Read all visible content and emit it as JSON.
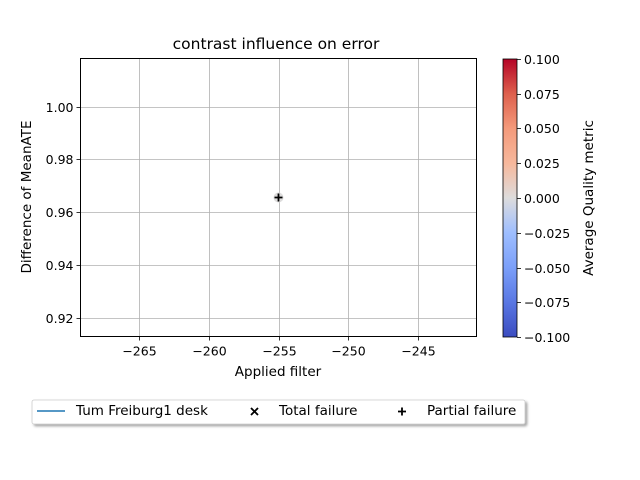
{
  "chart_data": {
    "type": "scatter",
    "title": "contrast influence on error",
    "xlabel": "Applied filter",
    "ylabel": "Difference of MeanATE",
    "xlim": [
      -269.2,
      -240.8
    ],
    "ylim": [
      0.9128,
      1.0182
    ],
    "xticks": [
      -265,
      -260,
      -255,
      -250,
      -245
    ],
    "xtick_labels": [
      "−265",
      "−260",
      "−255",
      "−250",
      "−245"
    ],
    "yticks": [
      0.92,
      0.94,
      0.96,
      0.98,
      1.0
    ],
    "ytick_labels": [
      "0.92",
      "0.94",
      "0.96",
      "0.98",
      "1.00"
    ],
    "grid": true,
    "points": [
      {
        "x": -255,
        "y": 0.9655,
        "quality": 0.0,
        "marker": "circle"
      },
      {
        "x": -255,
        "y": 0.9655,
        "marker": "partial-failure"
      }
    ],
    "colorbar": {
      "label": "Average Quality metric",
      "colormap": "coolwarm",
      "range": [
        -0.1,
        0.1
      ],
      "ticks": [
        -0.1,
        -0.075,
        -0.05,
        -0.025,
        0.0,
        0.025,
        0.05,
        0.075,
        0.1
      ],
      "tick_labels": [
        "−0.100",
        "−0.075",
        "−0.050",
        "−0.025",
        "0.000",
        "0.025",
        "0.050",
        "0.075",
        "0.100"
      ]
    },
    "legend": {
      "placement": "below",
      "entries": [
        {
          "label": "Tum Freiburg1 desk",
          "symbol": "line",
          "color": "#1f77b4"
        },
        {
          "label": "Total failure",
          "symbol": "x",
          "color": "#000000"
        },
        {
          "label": "Partial failure",
          "symbol": "plus",
          "color": "#000000"
        }
      ]
    }
  }
}
